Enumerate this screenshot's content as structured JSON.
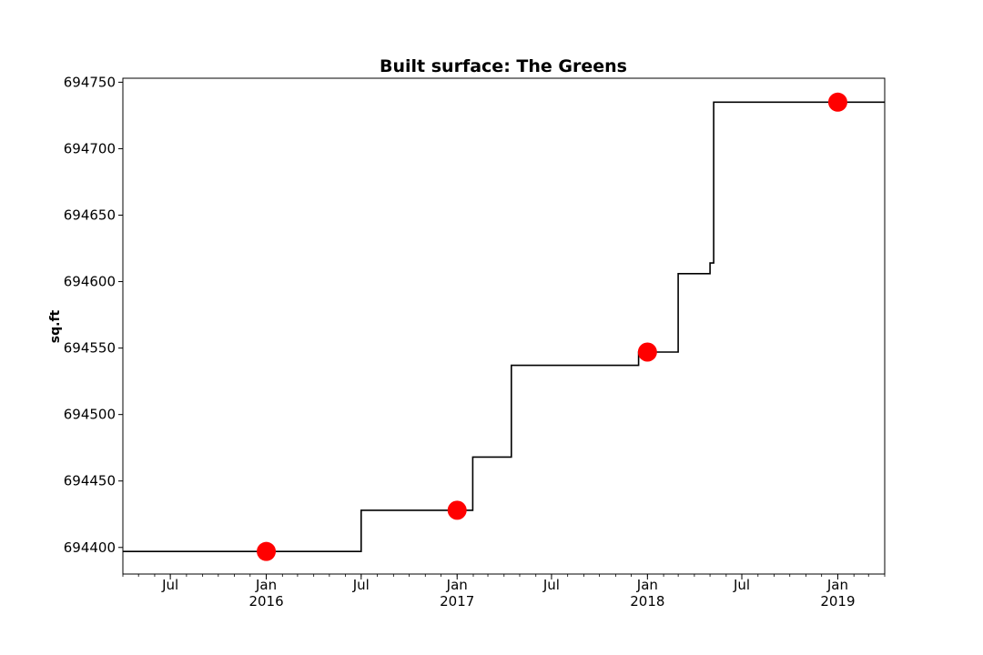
{
  "chart_data": {
    "type": "line",
    "title": "Built surface: The Greens",
    "xlabel": "",
    "ylabel": "sq.ft",
    "xlim": [
      "2015-04-01",
      "2019-04-01"
    ],
    "ylim": [
      694380,
      694753
    ],
    "grid": false,
    "y_ticks": [
      694400,
      694450,
      694500,
      694550,
      694600,
      694650,
      694700,
      694750
    ],
    "x_ticks": [
      {
        "date": "2015-07-01",
        "label": "Jul",
        "sublabel": ""
      },
      {
        "date": "2016-01-01",
        "label": "Jan",
        "sublabel": "2016"
      },
      {
        "date": "2016-07-01",
        "label": "Jul",
        "sublabel": ""
      },
      {
        "date": "2017-01-01",
        "label": "Jan",
        "sublabel": "2017"
      },
      {
        "date": "2017-07-01",
        "label": "Jul",
        "sublabel": ""
      },
      {
        "date": "2018-01-01",
        "label": "Jan",
        "sublabel": "2018"
      },
      {
        "date": "2018-07-01",
        "label": "Jul",
        "sublabel": ""
      },
      {
        "date": "2019-01-01",
        "label": "Jan",
        "sublabel": "2019"
      }
    ],
    "series": [
      {
        "style": "step",
        "color": "#000000",
        "points": [
          {
            "x": "2015-04-01",
            "y": 694397
          },
          {
            "x": "2016-07-01",
            "y": 694428
          },
          {
            "x": "2017-01-31",
            "y": 694468
          },
          {
            "x": "2017-04-15",
            "y": 694537
          },
          {
            "x": "2017-12-15",
            "y": 694547
          },
          {
            "x": "2018-03-01",
            "y": 694606
          },
          {
            "x": "2018-05-01",
            "y": 694614
          },
          {
            "x": "2018-05-08",
            "y": 694735
          },
          {
            "x": "2019-04-01",
            "y": 694735
          }
        ]
      },
      {
        "style": "markers",
        "color": "#ff0000",
        "points": [
          {
            "x": "2016-01-01",
            "y": 694397
          },
          {
            "x": "2017-01-01",
            "y": 694428
          },
          {
            "x": "2018-01-01",
            "y": 694547
          },
          {
            "x": "2019-01-01",
            "y": 694735
          }
        ]
      }
    ]
  }
}
